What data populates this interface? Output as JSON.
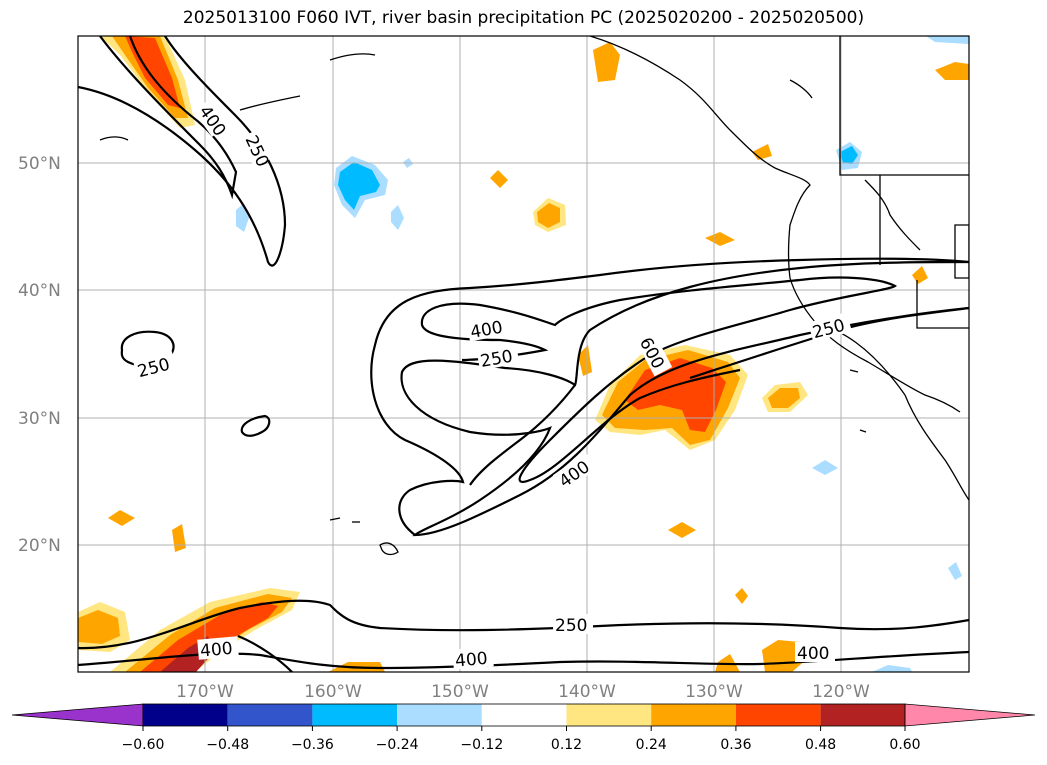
{
  "title": "2025013100 F060 IVT, river basin precipitation PC (2025020200 - 2025020500)",
  "map": {
    "lon_range": [
      -180,
      -110
    ],
    "lat_range": [
      10,
      60
    ],
    "lat_labels": [
      "50°N",
      "40°N",
      "30°N",
      "20°N"
    ],
    "lon_labels": [
      "170°W",
      "160°W",
      "150°W",
      "140°W",
      "130°W",
      "120°W"
    ],
    "gridlines": true,
    "contour_labels": [
      "400",
      "250",
      "400",
      "250",
      "250",
      "600",
      "400",
      "250",
      "250",
      "400",
      "400",
      "400"
    ]
  },
  "colorbar": {
    "colors": [
      "#9933cc",
      "#00008b",
      "#3355cc",
      "#00bbff",
      "#aaddff",
      "#ffffff",
      "#ffe680",
      "#ffa500",
      "#ff4500",
      "#b22222",
      "#ff88aa"
    ],
    "tick_labels": [
      "−0.60",
      "−0.48",
      "−0.36",
      "−0.24",
      "−0.12",
      "0.12",
      "0.24",
      "0.36",
      "0.48",
      "0.60"
    ]
  }
}
